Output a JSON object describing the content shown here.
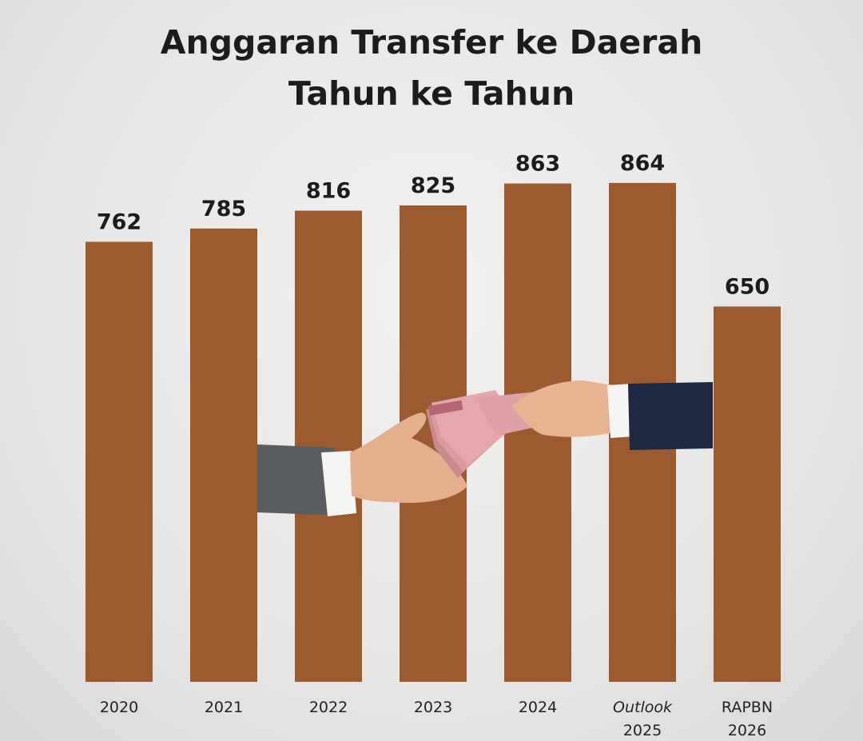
{
  "chart_data": {
    "type": "bar",
    "title_lines": [
      "Anggaran Transfer ke Daerah",
      "Tahun ke Tahun"
    ],
    "categories": [
      {
        "lines": [
          "2020"
        ],
        "italic_first": false
      },
      {
        "lines": [
          "2021"
        ],
        "italic_first": false
      },
      {
        "lines": [
          "2022"
        ],
        "italic_first": false
      },
      {
        "lines": [
          "2023"
        ],
        "italic_first": false
      },
      {
        "lines": [
          "2024"
        ],
        "italic_first": false
      },
      {
        "lines": [
          "Outlook",
          "2025"
        ],
        "italic_first": true
      },
      {
        "lines": [
          "RAPBN",
          "2026"
        ],
        "italic_first": false
      }
    ],
    "values": [
      762,
      785,
      816,
      825,
      863,
      864,
      650
    ],
    "bar_color": "#9b5a2f"
  }
}
